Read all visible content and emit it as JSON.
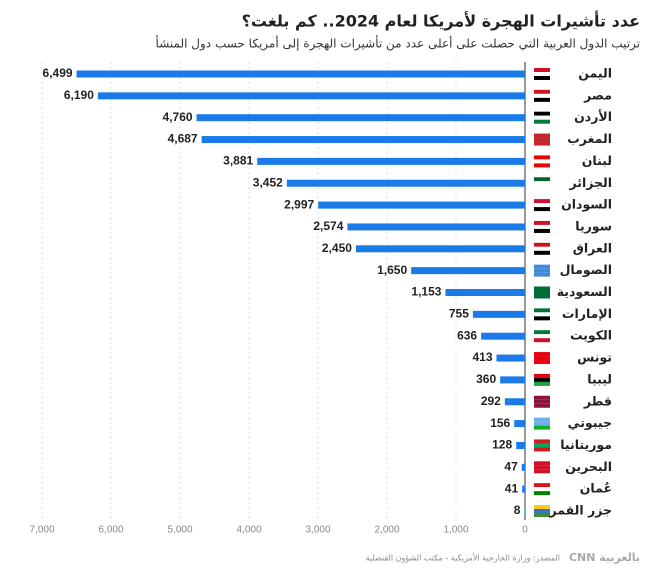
{
  "chart_data": {
    "type": "bar",
    "orientation": "horizontal",
    "title": "عدد تأشيرات الهجرة لأمريكا لعام 2024.. كم بلغت؟",
    "subtitle": "ترتيب الدول العربية التي حصلت على أعلى عدد من تأشيرات الهجرة إلى أمريكا حسب دول المنشأ",
    "categories": [
      "اليمن",
      "مصر",
      "الأردن",
      "المغرب",
      "لبنان",
      "الجزائر",
      "السودان",
      "سوريا",
      "العراق",
      "الصومال",
      "السعودية",
      "الإمارات",
      "الكويت",
      "تونس",
      "ليبيا",
      "قطر",
      "جيبوتي",
      "موريتانيا",
      "البحرين",
      "عُمان",
      "جزر القمر"
    ],
    "values": [
      6499,
      6190,
      4760,
      4687,
      3881,
      3452,
      2997,
      2574,
      2450,
      1650,
      1153,
      755,
      636,
      413,
      360,
      292,
      156,
      128,
      47,
      41,
      8
    ],
    "value_labels": [
      "6,499",
      "6,190",
      "4,760",
      "4,687",
      "3,881",
      "3,452",
      "2,997",
      "2,574",
      "2,450",
      "1,650",
      "1,153",
      "755",
      "636",
      "413",
      "360",
      "292",
      "156",
      "128",
      "47",
      "41",
      "8"
    ],
    "color": "#1a7be8",
    "xlim": [
      0,
      7000
    ],
    "xticks": [
      0,
      {
        "value": 1000,
        "label": "1,000"
      },
      {
        "value": 2000,
        "label": "2,000"
      },
      {
        "value": 3000,
        "label": "3,000"
      },
      {
        "value": 4000,
        "label": "4,000"
      },
      {
        "value": 5000,
        "label": "5,000"
      },
      {
        "value": 6000,
        "label": "6,000"
      },
      {
        "value": 7000,
        "label": "7,000"
      }
    ],
    "grid": true,
    "source": "المصدر: وزارة الخارجية الأمريكية - مكتب الشؤون القنصلية",
    "logo": "CNN بالعربية"
  }
}
